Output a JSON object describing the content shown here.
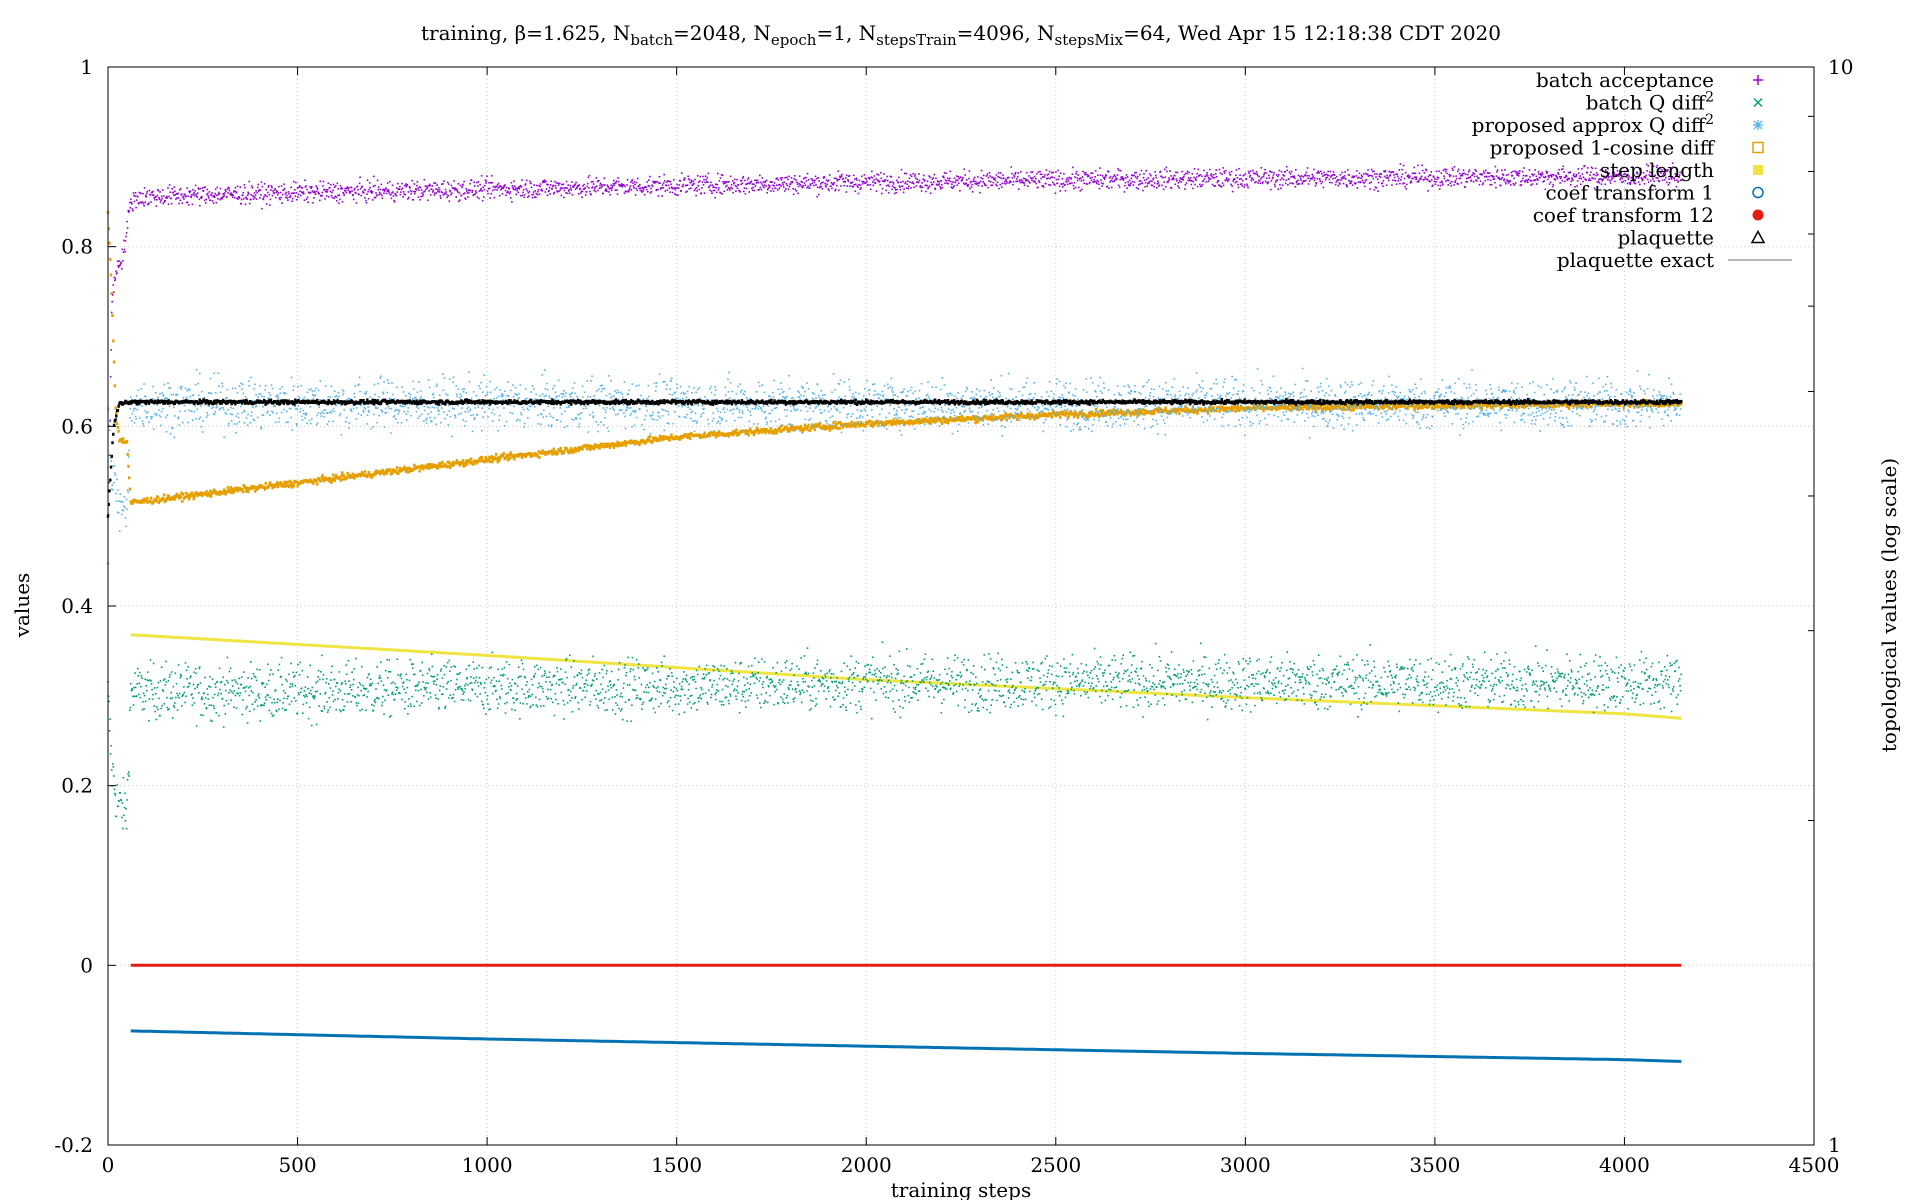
{
  "chart_data": {
    "type": "scatter",
    "title": {
      "prefix": "training, β=1.625, N",
      "batch_sub": "batch",
      "batch_eq": "=2048, N",
      "epoch_sub": "epoch",
      "epoch_eq": "=1, N",
      "train_sub": "stepsTrain",
      "train_eq": "=4096, N",
      "mix_sub": "stepsMix",
      "mix_eq": "=64, Wed Apr 15 12:18:38 CDT 2020"
    },
    "xlabel": "training steps",
    "ylabel": "values",
    "y2label": "topological values (log scale)",
    "xlim": [
      0,
      4500
    ],
    "ylim": [
      -0.2,
      1
    ],
    "y2lim": [
      1,
      10
    ],
    "y2_scale": "log",
    "x_ticks": [
      "0",
      "500",
      "1000",
      "1500",
      "2000",
      "2500",
      "3000",
      "3500",
      "4000",
      "4500"
    ],
    "y_ticks": [
      "-0.2",
      "0",
      "0.2",
      "0.4",
      "0.6",
      "0.8",
      "1"
    ],
    "y2_ticks": [
      "1",
      "10"
    ],
    "grid": true,
    "legend_position": "top-right",
    "legend": [
      {
        "name": "batch acceptance",
        "symbol": "+",
        "color": "#9400d3"
      },
      {
        "name": "batch Q diff",
        "sup": "2",
        "symbol": "×",
        "color": "#009e73"
      },
      {
        "name": "proposed approx Q diff",
        "sup": "2",
        "symbol": "✳",
        "color": "#56b4e9"
      },
      {
        "name": "proposed 1-cosine diff",
        "symbol": "□",
        "color": "#e69f00"
      },
      {
        "name": "step length",
        "symbol": "■",
        "color": "#f0e442"
      },
      {
        "name": "coef transform 1",
        "symbol": "○",
        "color": "#0072b2"
      },
      {
        "name": "coef transform 12",
        "symbol": "●",
        "color": "#e51e10"
      },
      {
        "name": "plaquette",
        "symbol": "△",
        "color": "#000000"
      },
      {
        "name": "plaquette exact",
        "symbol": "line",
        "color": "#a0a0a0"
      }
    ],
    "series": [
      {
        "name": "batch acceptance",
        "style": "dots",
        "color": "#9400d3",
        "noise": 0.008,
        "x": [
          0,
          10,
          25,
          40,
          60,
          80,
          200,
          500,
          1000,
          1500,
          2000,
          2500,
          3000,
          3500,
          4000,
          4150
        ],
        "y": [
          0.45,
          0.74,
          0.78,
          0.79,
          0.85,
          0.855,
          0.857,
          0.86,
          0.864,
          0.868,
          0.872,
          0.874,
          0.876,
          0.877,
          0.878,
          0.879
        ]
      },
      {
        "name": "batch Q diff^2",
        "style": "dots",
        "color": "#009e73",
        "noise": 0.022,
        "x": [
          0,
          10,
          25,
          50,
          60,
          500,
          1000,
          1500,
          2000,
          2500,
          3000,
          3500,
          4000,
          4150
        ],
        "y": [
          0.3,
          0.22,
          0.18,
          0.17,
          0.305,
          0.305,
          0.31,
          0.31,
          0.315,
          0.315,
          0.315,
          0.315,
          0.315,
          0.315
        ]
      },
      {
        "name": "proposed approx Q diff^2",
        "style": "dots",
        "color": "#56b4e9",
        "noise": 0.02,
        "x": [
          0,
          10,
          30,
          50,
          60,
          500,
          1000,
          1500,
          2000,
          2500,
          3000,
          3500,
          4000,
          4150
        ],
        "y": [
          0.62,
          0.55,
          0.51,
          0.5,
          0.625,
          0.625,
          0.625,
          0.625,
          0.625,
          0.625,
          0.625,
          0.625,
          0.625,
          0.625
        ]
      },
      {
        "name": "proposed 1-cosine diff",
        "style": "thick",
        "color": "#e69f00",
        "noise": 0.0025,
        "x": [
          0,
          10,
          20,
          30,
          50,
          60,
          500,
          1000,
          1500,
          2000,
          2500,
          3000,
          3500,
          4000,
          4150
        ],
        "y": [
          0.84,
          0.75,
          0.62,
          0.585,
          0.583,
          0.515,
          0.537,
          0.563,
          0.588,
          0.603,
          0.613,
          0.62,
          0.623,
          0.625,
          0.625
        ]
      },
      {
        "name": "step length",
        "style": "line",
        "color": "#f0e442",
        "x": [
          60,
          1000,
          2000,
          3000,
          4000,
          4150
        ],
        "y": [
          0.368,
          0.345,
          0.318,
          0.298,
          0.28,
          0.275
        ]
      },
      {
        "name": "coef transform 1",
        "style": "line",
        "color": "#0072b2",
        "x": [
          60,
          1000,
          2000,
          3000,
          4000,
          4150
        ],
        "y": [
          -0.073,
          -0.082,
          -0.09,
          -0.098,
          -0.105,
          -0.107
        ]
      },
      {
        "name": "coef transform 12",
        "style": "line",
        "color": "#e51e10",
        "x": [
          60,
          4150
        ],
        "y": [
          0.0,
          0.0
        ]
      },
      {
        "name": "plaquette",
        "style": "thick",
        "color": "#000000",
        "noise": 0.0015,
        "x": [
          0,
          15,
          30,
          60,
          1000,
          2000,
          3000,
          4000,
          4150
        ],
        "y": [
          0.5,
          0.6,
          0.625,
          0.627,
          0.627,
          0.627,
          0.627,
          0.627,
          0.627
        ]
      }
    ]
  }
}
